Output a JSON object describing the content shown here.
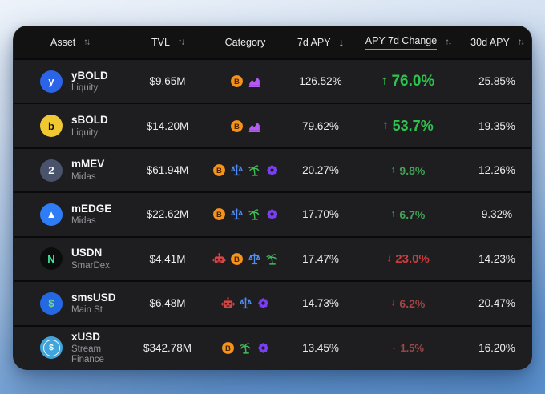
{
  "table": {
    "header": {
      "sort_glyphs": {
        "both": "↑↓",
        "desc": "↓"
      },
      "columns": [
        {
          "key": "asset",
          "label": "Asset",
          "sort": "both",
          "underlined": false
        },
        {
          "key": "tvl",
          "label": "TVL",
          "sort": "both",
          "underlined": false
        },
        {
          "key": "category",
          "label": "Category",
          "sort": "none",
          "underlined": false
        },
        {
          "key": "7d-apy",
          "label": "7d APY",
          "sort": "desc",
          "underlined": false
        },
        {
          "key": "apy-7d-change",
          "label": "APY 7d Change",
          "sort": "both",
          "underlined": true
        },
        {
          "key": "30d-apy",
          "label": "30d APY",
          "sort": "both",
          "underlined": false
        }
      ]
    },
    "rows": [
      {
        "name": "yBOLD",
        "protocol": "Liquity",
        "logo": {
          "bg": "#2b64e8",
          "fg": "#ffffff",
          "glyph": "y",
          "ring": false
        },
        "tvl": "$9.65M",
        "categories": [
          "bitcoin",
          "chart"
        ],
        "apy_7d": "126.52%",
        "change": {
          "dir": "up",
          "arrow": "↑",
          "value": "76.0%",
          "color": "#2ec24e",
          "size": 19
        },
        "apy_30d": "25.85%"
      },
      {
        "name": "sBOLD",
        "protocol": "Liquity",
        "logo": {
          "bg": "#f0c832",
          "fg": "#141414",
          "glyph": "b",
          "ring": false
        },
        "tvl": "$14.20M",
        "categories": [
          "bitcoin",
          "chart"
        ],
        "apy_7d": "79.62%",
        "change": {
          "dir": "up",
          "arrow": "↑",
          "value": "53.7%",
          "color": "#2ec24e",
          "size": 18
        },
        "apy_30d": "19.35%"
      },
      {
        "name": "mMEV",
        "protocol": "Midas",
        "logo": {
          "bg": "#49536b",
          "fg": "#ffffff",
          "glyph": "2",
          "ring": false
        },
        "tvl": "$61.94M",
        "categories": [
          "bitcoin",
          "scales",
          "plant",
          "gear"
        ],
        "apy_7d": "20.27%",
        "change": {
          "dir": "up",
          "arrow": "↑",
          "value": "9.8%",
          "color": "#44a158",
          "size": 14
        },
        "apy_30d": "12.26%"
      },
      {
        "name": "mEDGE",
        "protocol": "Midas",
        "logo": {
          "bg": "#2e7cf6",
          "fg": "#ffffff",
          "glyph": "▲",
          "ring": false
        },
        "tvl": "$22.62M",
        "categories": [
          "bitcoin",
          "scales",
          "plant",
          "gear"
        ],
        "apy_7d": "17.70%",
        "change": {
          "dir": "up",
          "arrow": "↑",
          "value": "6.7%",
          "color": "#44a158",
          "size": 14
        },
        "apy_30d": "9.32%"
      },
      {
        "name": "USDN",
        "protocol": "SmarDex",
        "logo": {
          "bg": "#0b0d0c",
          "fg": "#45e6a1",
          "glyph": "N",
          "ring": false
        },
        "tvl": "$4.41M",
        "categories": [
          "robot",
          "bitcoin",
          "scales",
          "plant"
        ],
        "apy_7d": "17.47%",
        "change": {
          "dir": "down",
          "arrow": "↓",
          "value": "23.0%",
          "color": "#cc3d3d",
          "size": 15
        },
        "apy_30d": "14.23%"
      },
      {
        "name": "smsUSD",
        "protocol": "Main St",
        "logo": {
          "bg": "#2469e3",
          "fg": "#6fe07a",
          "glyph": "$",
          "ring": false
        },
        "tvl": "$6.48M",
        "categories": [
          "robot",
          "scales",
          "gear"
        ],
        "apy_7d": "14.73%",
        "change": {
          "dir": "down",
          "arrow": "↓",
          "value": "6.2%",
          "color": "#a34444",
          "size": 14
        },
        "apy_30d": "20.47%"
      },
      {
        "name": "xUSD",
        "protocol": "Stream Finance",
        "logo": {
          "bg": "#41a5dc",
          "fg": "#ffffff",
          "glyph": "$",
          "ring": true
        },
        "tvl": "$342.78M",
        "categories": [
          "bitcoin",
          "plant",
          "gear"
        ],
        "apy_7d": "13.45%",
        "change": {
          "dir": "down",
          "arrow": "↓",
          "value": "1.5%",
          "color": "#994747",
          "size": 13
        },
        "apy_30d": "16.20%"
      }
    ]
  },
  "icon_colors": {
    "bitcoin": "#f7931a",
    "chart": "#b45af2",
    "scales": "#4f8ef7",
    "plant": "#3fbf5a",
    "robot": "#d94444",
    "gear": "#7a3ff2"
  },
  "status_colors": {
    "positive": "#2ec24e",
    "negative": "#cc3d3d"
  }
}
